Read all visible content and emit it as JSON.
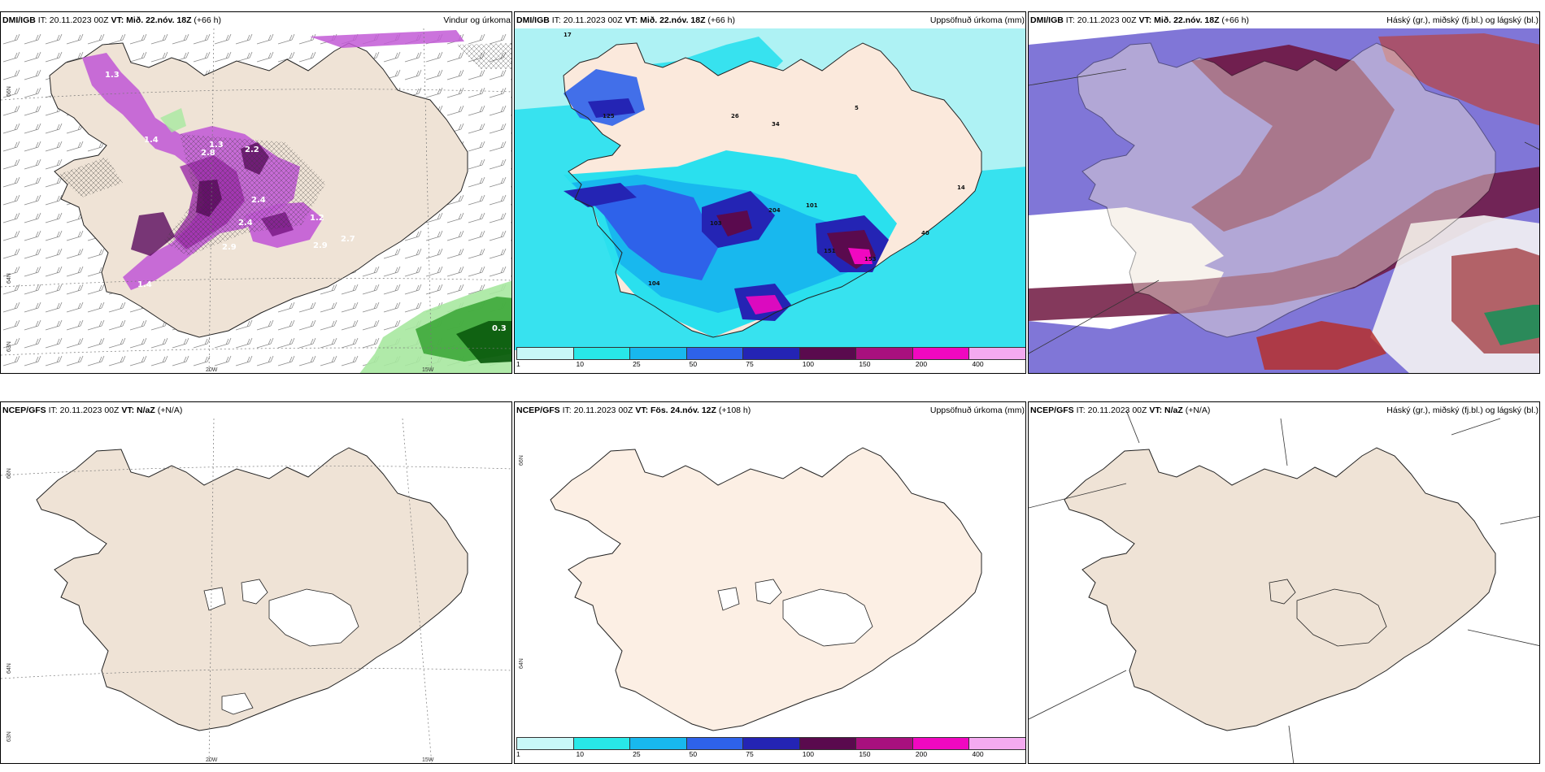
{
  "panels": [
    {
      "model": "DMI/IGB",
      "it": "20.11.2023 00Z",
      "vt_value": "Mið. 22.nóv. 18Z",
      "lead": "(+66 h)",
      "product": "Vindur og úrkoma",
      "labels": [
        "2.4",
        "2.9",
        "2.4",
        "2.9",
        "2.7",
        "1.3",
        "2.2",
        "2.8",
        "1.4",
        "1.4",
        "1.3",
        "1.2",
        "0.3"
      ]
    },
    {
      "model": "DMI/IGB",
      "it": "20.11.2023 00Z",
      "vt_value": "Mið. 22.nóv. 18Z",
      "lead": "(+66 h)",
      "product": "Uppsöfnuð úrkoma (mm)",
      "labels": [
        "17",
        "26",
        "34",
        "5",
        "14",
        "40",
        "151",
        "204",
        "101",
        "125",
        "103",
        "104",
        "153"
      ]
    },
    {
      "model": "DMI/IGB",
      "it": "20.11.2023 00Z",
      "vt_value": "Mið. 22.nóv. 18Z",
      "lead": "(+66 h)",
      "product": "Háský (gr.), miðský (fj.bl.) og lágský (bl.)"
    },
    {
      "model": "NCEP/GFS",
      "it": "20.11.2023 00Z",
      "vt_value": "N/aZ",
      "lead": "(+N/A)",
      "product": ""
    },
    {
      "model": "NCEP/GFS",
      "it": "20.11.2023 00Z",
      "vt_value": "Fös. 24.nóv. 12Z",
      "lead": "(+108 h)",
      "product": "Uppsöfnuð úrkoma (mm)"
    },
    {
      "model": "NCEP/GFS",
      "it": "20.11.2023 00Z",
      "vt_value": "N/aZ",
      "lead": "(+N/A)",
      "product": "Háský (gr.), miðský (fj.bl.) og lágský (bl.)"
    }
  ],
  "common": {
    "it_label": "IT:",
    "vt_label": "VT:"
  },
  "graticule": {
    "lon_left": "20W",
    "lon_right": "15W",
    "lat_top": "66N",
    "lat_bottom": "64N",
    "lat_low": "63N"
  },
  "colorbar": {
    "ticks": [
      "1",
      "10",
      "25",
      "50",
      "75",
      "100",
      "150",
      "200",
      "400"
    ],
    "colors": [
      "#c8f8f8",
      "#28e8e8",
      "#18b8ee",
      "#2e62ea",
      "#2424b4",
      "#5a0a4e",
      "#a8107e",
      "#f008c0",
      "#f4aaf0"
    ]
  },
  "colors": {
    "land": "#efe3d6",
    "land_light": "#fcefe4",
    "coast": "#222222",
    "precip_dmi": "#c25ad6",
    "cyan_bg": "#2ae0ee"
  }
}
